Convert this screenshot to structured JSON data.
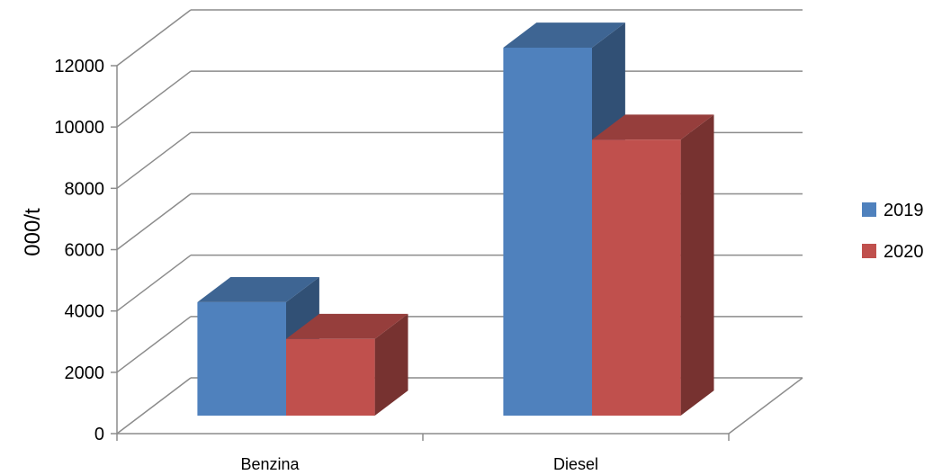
{
  "chart_data": {
    "type": "bar",
    "title": "",
    "xlabel": "",
    "ylabel": "000/t",
    "categories": [
      "Benzina",
      "Diesel"
    ],
    "series": [
      {
        "name": "2019",
        "values": [
          3700,
          12000
        ],
        "color": "#4F81BD"
      },
      {
        "name": "2020",
        "values": [
          2500,
          9000
        ],
        "color": "#C0504D"
      }
    ],
    "ylim": [
      0,
      12000
    ],
    "yticks": [
      0,
      2000,
      4000,
      6000,
      8000,
      10000,
      12000
    ],
    "grid": true,
    "legend_position": "right",
    "style": "3d-clustered-column"
  }
}
